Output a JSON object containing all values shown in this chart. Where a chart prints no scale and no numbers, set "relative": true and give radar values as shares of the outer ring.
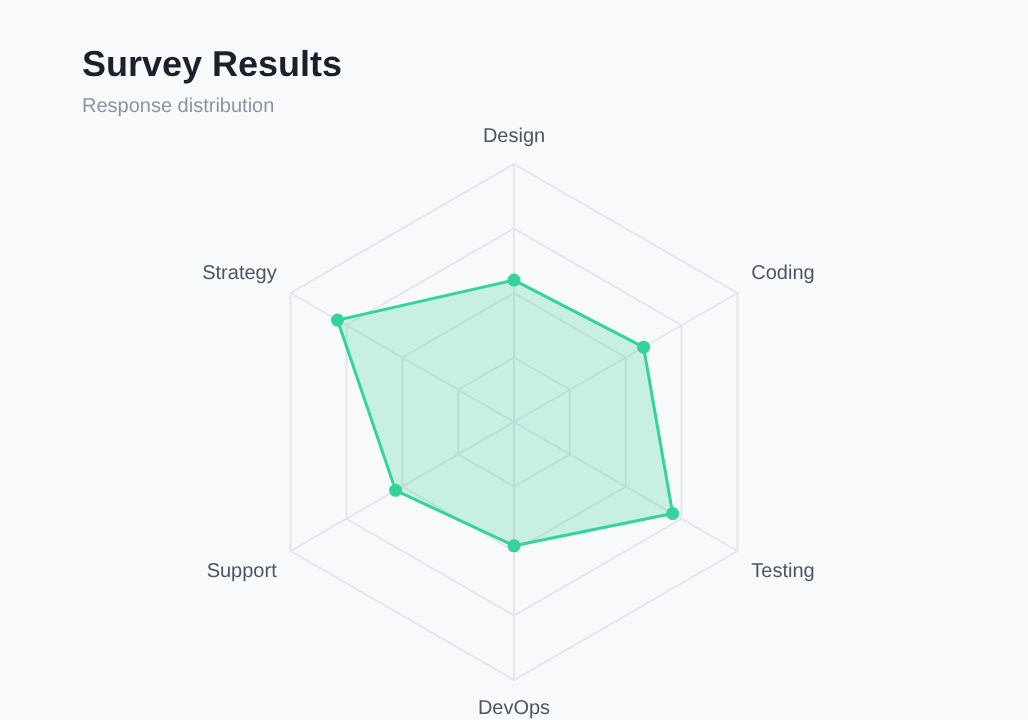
{
  "chart_data": {
    "type": "radar",
    "title": "Survey Results",
    "subtitle": "Response distribution",
    "categories": [
      "Design",
      "Coding",
      "Testing",
      "DevOps",
      "Support",
      "Strategy"
    ],
    "relative": true,
    "grid": true,
    "marker": "circle",
    "legend": false,
    "series": [
      {
        "color": "#34d399",
        "values": [
          0.55,
          0.58,
          0.71,
          0.48,
          0.53,
          0.79
        ]
      }
    ]
  }
}
